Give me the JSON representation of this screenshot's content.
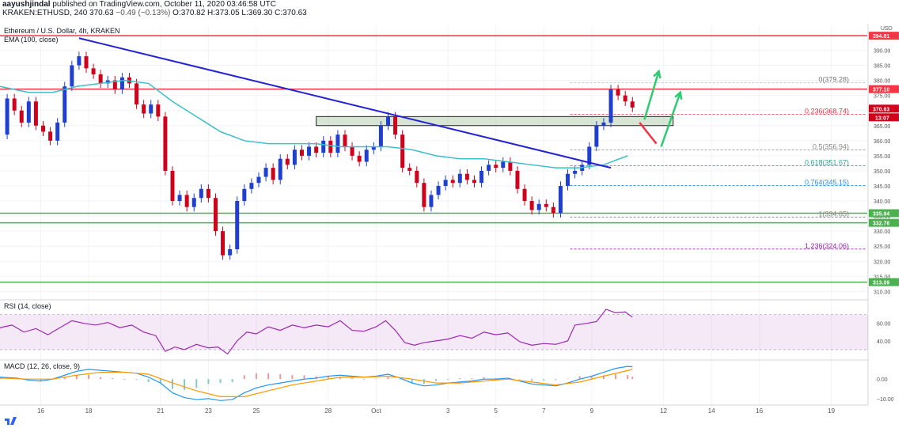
{
  "header": {
    "user": "aayushjindal",
    "published_text": "published on TradingView.com, October 11, 2020 03:46:58 UTC",
    "symbol_line": "KRAKEN:ETHUSD, 240",
    "last": "370.63",
    "change": "−0.49 (−0.13%)",
    "ohlc": "O:370.82 H:373.05 L:369.30 C:370.63"
  },
  "chart_data": [
    {
      "type": "line",
      "title": "Ethereum / U.S. Dollar, 4h, KRAKEN",
      "indicator_label": "EMA (100, close)",
      "currency": "USD",
      "ylim": [
        308,
        398
      ],
      "y_ticks": [
        310,
        315,
        320,
        325,
        330,
        335,
        340,
        345,
        350,
        355,
        360,
        365,
        370,
        375,
        380,
        385,
        390,
        395
      ],
      "x_labels": [
        {
          "label": "16",
          "x": 16
        },
        {
          "label": "18",
          "x": 18
        },
        {
          "label": "21",
          "x": 21
        },
        {
          "label": "23",
          "x": 23
        },
        {
          "label": "25",
          "x": 25
        },
        {
          "label": "28",
          "x": 28
        },
        {
          "label": "Oct",
          "x": 30
        },
        {
          "label": "3",
          "x": 33
        },
        {
          "label": "5",
          "x": 35
        },
        {
          "label": "7",
          "x": 37
        },
        {
          "label": "9",
          "x": 39
        },
        {
          "label": "12",
          "x": 42
        },
        {
          "label": "14",
          "x": 44
        },
        {
          "label": "16",
          "x": 46
        },
        {
          "label": "19",
          "x": 49
        }
      ],
      "xlim": [
        14.3,
        50.5
      ],
      "price_close": [
        [
          14.3,
          362
        ],
        [
          14.6,
          374
        ],
        [
          14.9,
          370
        ],
        [
          15.2,
          366
        ],
        [
          15.5,
          373
        ],
        [
          15.8,
          365
        ],
        [
          16.1,
          363
        ],
        [
          16.4,
          360
        ],
        [
          16.7,
          366
        ],
        [
          17.0,
          378
        ],
        [
          17.3,
          385
        ],
        [
          17.6,
          388
        ],
        [
          17.9,
          384
        ],
        [
          18.2,
          382
        ],
        [
          18.5,
          379
        ],
        [
          18.8,
          380
        ],
        [
          19.1,
          377
        ],
        [
          19.4,
          381
        ],
        [
          19.7,
          379
        ],
        [
          20.0,
          372
        ],
        [
          20.3,
          369
        ],
        [
          20.6,
          372
        ],
        [
          20.9,
          368
        ],
        [
          21.2,
          350
        ],
        [
          21.5,
          340
        ],
        [
          21.8,
          342
        ],
        [
          22.1,
          338
        ],
        [
          22.4,
          341
        ],
        [
          22.7,
          344
        ],
        [
          23.0,
          341
        ],
        [
          23.3,
          330
        ],
        [
          23.6,
          322
        ],
        [
          23.9,
          324
        ],
        [
          24.2,
          340
        ],
        [
          24.5,
          344
        ],
        [
          24.8,
          346
        ],
        [
          25.1,
          348
        ],
        [
          25.4,
          351
        ],
        [
          25.7,
          347
        ],
        [
          26.0,
          354
        ],
        [
          26.3,
          352
        ],
        [
          26.6,
          357
        ],
        [
          26.9,
          355
        ],
        [
          27.2,
          358
        ],
        [
          27.5,
          356
        ],
        [
          27.8,
          360
        ],
        [
          28.1,
          356
        ],
        [
          28.4,
          362
        ],
        [
          28.7,
          358
        ],
        [
          29.0,
          355
        ],
        [
          29.3,
          353
        ],
        [
          29.6,
          357
        ],
        [
          29.9,
          358
        ],
        [
          30.2,
          365
        ],
        [
          30.5,
          368
        ],
        [
          30.8,
          362
        ],
        [
          31.1,
          351
        ],
        [
          31.4,
          350
        ],
        [
          31.7,
          346
        ],
        [
          32.0,
          338
        ],
        [
          32.3,
          342
        ],
        [
          32.6,
          345
        ],
        [
          32.9,
          347
        ],
        [
          33.2,
          346
        ],
        [
          33.5,
          349
        ],
        [
          33.8,
          347
        ],
        [
          34.1,
          346
        ],
        [
          34.4,
          350
        ],
        [
          34.7,
          352
        ],
        [
          35.0,
          351
        ],
        [
          35.3,
          353
        ],
        [
          35.6,
          350
        ],
        [
          35.9,
          344
        ],
        [
          36.2,
          340
        ],
        [
          36.5,
          337
        ],
        [
          36.8,
          339
        ],
        [
          37.1,
          338
        ],
        [
          37.4,
          336
        ],
        [
          37.7,
          345
        ],
        [
          38.0,
          349
        ],
        [
          38.3,
          350
        ],
        [
          38.6,
          352
        ],
        [
          38.9,
          358
        ],
        [
          39.2,
          365
        ],
        [
          39.5,
          366
        ],
        [
          39.8,
          377
        ],
        [
          40.1,
          375
        ],
        [
          40.4,
          373
        ],
        [
          40.7,
          371
        ]
      ],
      "ema_100": [
        [
          14.3,
          378
        ],
        [
          15.5,
          376
        ],
        [
          16.5,
          376
        ],
        [
          17.5,
          378
        ],
        [
          18.5,
          379
        ],
        [
          19.5,
          380
        ],
        [
          20.5,
          379
        ],
        [
          21.5,
          373
        ],
        [
          22.5,
          368
        ],
        [
          23.5,
          363
        ],
        [
          24.5,
          360
        ],
        [
          25.5,
          359
        ],
        [
          26.5,
          359
        ],
        [
          27.5,
          359
        ],
        [
          28.5,
          358
        ],
        [
          29.5,
          358
        ],
        [
          30.5,
          358
        ],
        [
          31.5,
          357
        ],
        [
          32.5,
          355
        ],
        [
          33.5,
          354
        ],
        [
          34.5,
          354
        ],
        [
          35.5,
          353
        ],
        [
          36.5,
          352
        ],
        [
          37.5,
          351
        ],
        [
          38.5,
          351
        ],
        [
          39.5,
          352
        ],
        [
          40.5,
          355
        ]
      ],
      "levels": [
        {
          "label": "394.81",
          "value": 394.81,
          "color": "#f23645"
        },
        {
          "label": "377.10",
          "value": 377.1,
          "color": "#f23645"
        },
        {
          "label": "335.94",
          "value": 335.94,
          "color": "#4caf50"
        },
        {
          "label": "332.76",
          "value": 332.76,
          "color": "#4caf50"
        },
        {
          "label": "313.09",
          "value": 313.09,
          "color": "#4caf50"
        }
      ],
      "last_price_label": "370.63",
      "countdown_label": "13:07",
      "trendline": {
        "from": [
          17.6,
          394
        ],
        "to": [
          39.8,
          351
        ]
      },
      "zone": {
        "from_x": 27.5,
        "to_x": 42.4,
        "top": 368,
        "bottom": 365
      },
      "fib": [
        {
          "label": "0(379.28)",
          "value": 379.28,
          "color": "#bbbbbb"
        },
        {
          "label": "0.236(368.74)",
          "value": 368.74,
          "color": "#f23645"
        },
        {
          "label": "0.5(356.94)",
          "value": 356.94,
          "color": "#888888"
        },
        {
          "label": "0.618(351.67)",
          "value": 351.67,
          "color": "#26a69a"
        },
        {
          "label": "0.764(345.15)",
          "value": 345.15,
          "color": "#2196f3"
        },
        {
          "label": "1(334.65)",
          "value": 334.65,
          "color": "#888888"
        },
        {
          "label": "1.236(324.06)",
          "value": 324.06,
          "color": "#9c27b0"
        }
      ],
      "fib_start_x": 38.1,
      "arrows": [
        {
          "color": "#f23645",
          "from": [
            41.0,
            366
          ],
          "to": [
            41.7,
            359
          ]
        },
        {
          "color": "#2ecc71",
          "from": [
            41.2,
            367
          ],
          "to": [
            41.8,
            383
          ]
        },
        {
          "color": "#2ecc71",
          "from": [
            41.9,
            358
          ],
          "to": [
            42.7,
            376
          ]
        }
      ]
    },
    {
      "type": "line",
      "title": "RSI (14, close)",
      "ylim": [
        20,
        85
      ],
      "y_ticks": [
        40,
        60
      ],
      "band": [
        30,
        70
      ],
      "values": [
        [
          14.3,
          55
        ],
        [
          14.8,
          58
        ],
        [
          15.3,
          50
        ],
        [
          15.8,
          54
        ],
        [
          16.3,
          47
        ],
        [
          16.8,
          55
        ],
        [
          17.3,
          63
        ],
        [
          17.8,
          60
        ],
        [
          18.3,
          58
        ],
        [
          18.8,
          61
        ],
        [
          19.3,
          55
        ],
        [
          19.8,
          58
        ],
        [
          20.3,
          50
        ],
        [
          20.8,
          46
        ],
        [
          21.2,
          28
        ],
        [
          21.6,
          33
        ],
        [
          22.0,
          30
        ],
        [
          22.5,
          36
        ],
        [
          23.0,
          32
        ],
        [
          23.4,
          33
        ],
        [
          23.8,
          25
        ],
        [
          24.2,
          40
        ],
        [
          24.6,
          50
        ],
        [
          25.0,
          48
        ],
        [
          25.5,
          56
        ],
        [
          26.0,
          52
        ],
        [
          26.5,
          58
        ],
        [
          27.0,
          55
        ],
        [
          27.5,
          58
        ],
        [
          28.0,
          56
        ],
        [
          28.5,
          63
        ],
        [
          29.0,
          52
        ],
        [
          29.5,
          51
        ],
        [
          30.0,
          56
        ],
        [
          30.4,
          63
        ],
        [
          30.8,
          52
        ],
        [
          31.2,
          38
        ],
        [
          31.6,
          35
        ],
        [
          32.0,
          38
        ],
        [
          32.5,
          40
        ],
        [
          33.0,
          42
        ],
        [
          33.5,
          46
        ],
        [
          34.0,
          43
        ],
        [
          34.5,
          50
        ],
        [
          35.0,
          47
        ],
        [
          35.5,
          49
        ],
        [
          36.0,
          39
        ],
        [
          36.5,
          35
        ],
        [
          37.0,
          37
        ],
        [
          37.5,
          36
        ],
        [
          38.0,
          40
        ],
        [
          38.3,
          58
        ],
        [
          38.8,
          60
        ],
        [
          39.2,
          62
        ],
        [
          39.6,
          76
        ],
        [
          40.0,
          72
        ],
        [
          40.4,
          73
        ],
        [
          40.7,
          67
        ]
      ]
    },
    {
      "type": "line",
      "title": "MACD (12, 26, close, 9)",
      "ylim": [
        -12.5,
        9
      ],
      "y_ticks": [
        0.0,
        -10.0
      ],
      "tick_labels": [
        "0.00",
        "−10.00"
      ],
      "macd": [
        [
          14.3,
          1
        ],
        [
          15.0,
          0.5
        ],
        [
          15.5,
          -0.5
        ],
        [
          16.0,
          -1
        ],
        [
          16.5,
          0
        ],
        [
          17.0,
          2
        ],
        [
          17.5,
          4
        ],
        [
          18.0,
          5
        ],
        [
          18.5,
          4.5
        ],
        [
          19.0,
          4
        ],
        [
          19.5,
          3.5
        ],
        [
          20.0,
          3
        ],
        [
          20.5,
          1
        ],
        [
          21.0,
          -2
        ],
        [
          21.5,
          -7
        ],
        [
          22.0,
          -9.5
        ],
        [
          22.5,
          -10.5
        ],
        [
          23.0,
          -10
        ],
        [
          23.5,
          -11
        ],
        [
          24.0,
          -10.5
        ],
        [
          24.5,
          -7
        ],
        [
          25.0,
          -4.5
        ],
        [
          25.5,
          -3
        ],
        [
          26.0,
          -2
        ],
        [
          26.5,
          -1
        ],
        [
          27.0,
          0
        ],
        [
          27.5,
          0.5
        ],
        [
          28.0,
          1.5
        ],
        [
          28.5,
          2
        ],
        [
          29.0,
          1.5
        ],
        [
          29.5,
          1
        ],
        [
          30.0,
          1.5
        ],
        [
          30.5,
          2.5
        ],
        [
          31.0,
          0.5
        ],
        [
          31.5,
          -2
        ],
        [
          32.0,
          -3.5
        ],
        [
          32.5,
          -3
        ],
        [
          33.0,
          -2
        ],
        [
          33.5,
          -1.5
        ],
        [
          34.0,
          -1
        ],
        [
          34.5,
          0
        ],
        [
          35.0,
          0
        ],
        [
          35.5,
          0.5
        ],
        [
          36.0,
          -1
        ],
        [
          36.5,
          -2.5
        ],
        [
          37.0,
          -3
        ],
        [
          37.5,
          -3.5
        ],
        [
          38.0,
          -2
        ],
        [
          38.5,
          0
        ],
        [
          39.0,
          1.5
        ],
        [
          39.5,
          3.5
        ],
        [
          40.0,
          5.5
        ],
        [
          40.5,
          6.5
        ],
        [
          40.7,
          6.3
        ]
      ],
      "signal": [
        [
          14.3,
          0.5
        ],
        [
          15.5,
          0
        ],
        [
          16.5,
          0
        ],
        [
          17.5,
          2
        ],
        [
          18.5,
          3.5
        ],
        [
          19.5,
          3.5
        ],
        [
          20.5,
          2.5
        ],
        [
          21.5,
          -2
        ],
        [
          22.5,
          -6
        ],
        [
          23.5,
          -9
        ],
        [
          24.5,
          -9
        ],
        [
          25.5,
          -6
        ],
        [
          26.5,
          -3
        ],
        [
          27.5,
          -1
        ],
        [
          28.5,
          1
        ],
        [
          29.5,
          1
        ],
        [
          30.5,
          1.5
        ],
        [
          31.5,
          0
        ],
        [
          32.5,
          -2
        ],
        [
          33.5,
          -2
        ],
        [
          34.5,
          -1
        ],
        [
          35.5,
          0
        ],
        [
          36.5,
          -1.5
        ],
        [
          37.5,
          -3
        ],
        [
          38.5,
          -1.5
        ],
        [
          39.5,
          1.5
        ],
        [
          40.7,
          5
        ]
      ]
    }
  ]
}
